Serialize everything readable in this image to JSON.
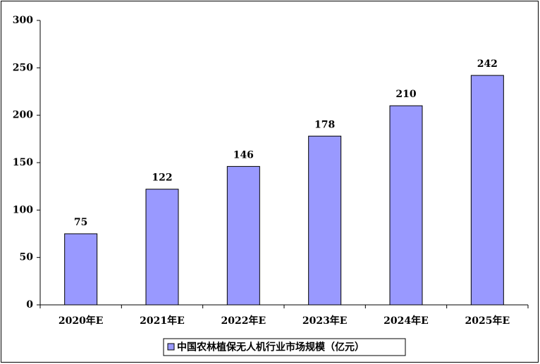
{
  "chart_data": {
    "type": "bar",
    "categories": [
      "2020年E",
      "2021年E",
      "2022年E",
      "2023年E",
      "2024年E",
      "2025年E"
    ],
    "series": [
      {
        "name": "中国农林植保无人机行业市场规模（亿元）",
        "color": "#9999ff",
        "values": [
          75,
          122,
          146,
          178,
          210,
          242
        ]
      }
    ],
    "ylim": [
      0,
      300
    ],
    "yticks": [
      0,
      50,
      100,
      150,
      200,
      250,
      300
    ],
    "grid": false,
    "legend": "bottom"
  }
}
